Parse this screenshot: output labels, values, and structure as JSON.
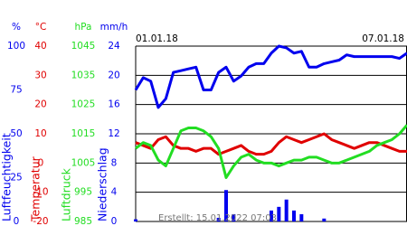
{
  "chart_data": {
    "type": "line",
    "categories": [
      "01.01.18",
      null,
      null,
      null,
      null,
      null,
      null,
      null,
      null,
      null,
      null,
      null,
      null,
      null,
      null,
      null,
      null,
      null,
      null,
      null,
      null,
      null,
      null,
      null,
      null,
      null,
      null,
      null,
      null,
      null,
      null,
      null,
      null,
      null,
      null,
      null,
      "07.01.18"
    ],
    "footer": "Erstellt: 15.01.2022 07:03",
    "grid": true,
    "series": [
      {
        "name": "Luftfeuchtigkeit",
        "unit": "%",
        "kind": "line",
        "color": "#0000ee",
        "ylim": [
          0,
          100
        ],
        "yticks": [
          0,
          25,
          50,
          75,
          100
        ],
        "values": [
          75,
          82,
          80,
          65,
          70,
          85,
          86,
          87,
          88,
          75,
          75,
          85,
          88,
          80,
          83,
          88,
          90,
          90,
          96,
          100,
          99,
          96,
          97,
          88,
          88,
          90,
          91,
          92,
          95,
          94,
          94,
          94,
          94,
          94,
          94,
          93,
          96
        ]
      },
      {
        "name": "Temperatur",
        "unit": "°C",
        "kind": "line",
        "color": "#e00000",
        "ylim": [
          -20,
          40
        ],
        "yticks": [
          -20,
          -10,
          0,
          10,
          20,
          30,
          40
        ],
        "values": [
          7,
          6,
          5,
          8,
          9,
          6,
          5,
          5,
          4,
          5,
          5,
          3,
          4,
          5,
          6,
          4,
          3,
          3,
          4,
          7,
          9,
          8,
          7,
          8,
          9,
          10,
          8,
          7,
          6,
          5,
          6,
          7,
          7,
          6,
          5,
          4,
          4
        ]
      },
      {
        "name": "Luftdruck",
        "unit": "hPa",
        "kind": "line",
        "color": "#22dd22",
        "ylim": [
          985,
          1045
        ],
        "yticks": [
          985,
          995,
          1005,
          1015,
          1025,
          1035,
          1045
        ],
        "values": [
          1010,
          1012,
          1011,
          1006,
          1004,
          1010,
          1016,
          1017,
          1017,
          1016,
          1014,
          1010,
          1000,
          1004,
          1007,
          1008,
          1006,
          1005,
          1005,
          1004,
          1005,
          1006,
          1006,
          1007,
          1007,
          1006,
          1005,
          1005,
          1006,
          1007,
          1008,
          1009,
          1011,
          1012,
          1013,
          1015,
          1018
        ]
      },
      {
        "name": "Niederschlag",
        "unit": "mm/h",
        "kind": "bar",
        "color": "#0000ee",
        "ylim": [
          0,
          24
        ],
        "yticks": [
          0,
          4,
          8,
          12,
          16,
          20,
          24
        ],
        "values": [
          0.3,
          0,
          0,
          0,
          0,
          0,
          0,
          0,
          0,
          0,
          0,
          0.5,
          4.3,
          1,
          0,
          0,
          0,
          0,
          1.5,
          2,
          3,
          1.5,
          1,
          0,
          0,
          0.4,
          0,
          0,
          0,
          0,
          0,
          0,
          0,
          0,
          0,
          0,
          0
        ]
      }
    ]
  }
}
